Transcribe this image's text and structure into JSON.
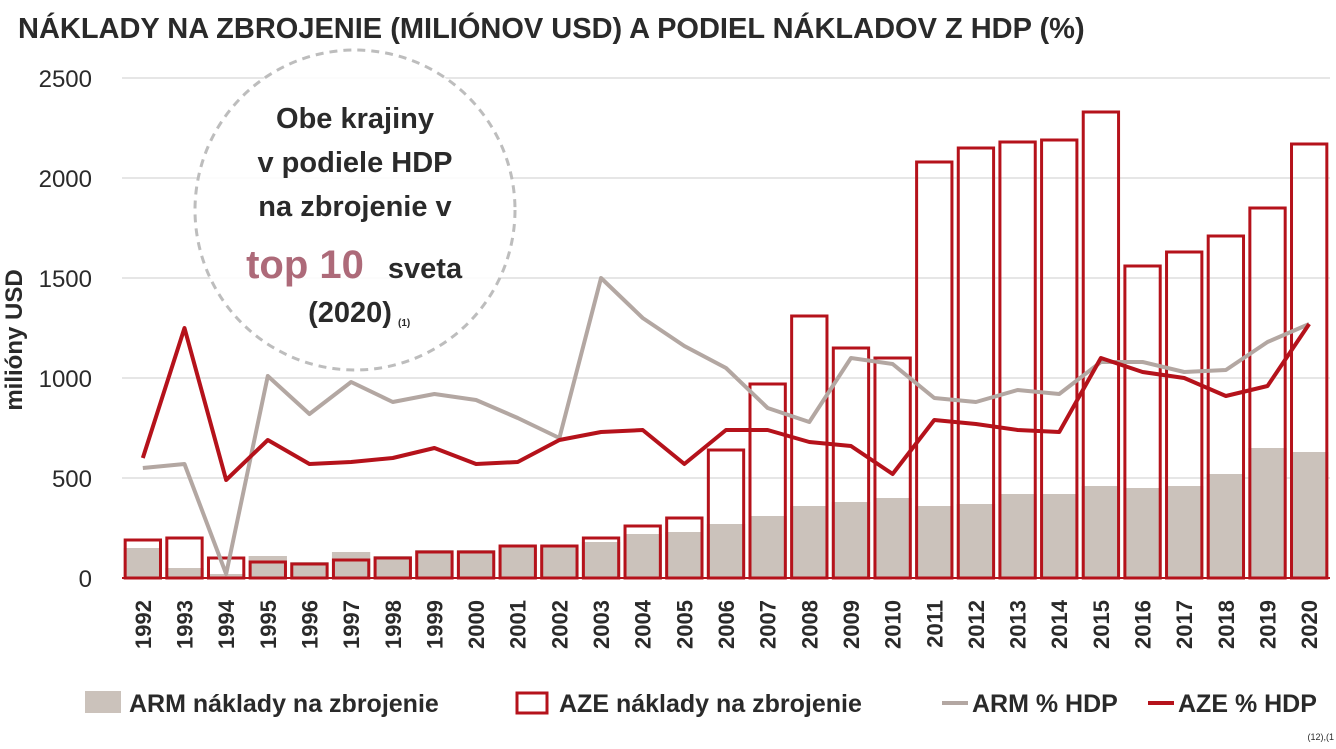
{
  "chart_data": {
    "type": "bar_line",
    "title": "NÁKLADY NA ZBROJENIE (MILIÓNOV USD) A PODIEL NÁKLADOV Z HDP (%)",
    "y_label": "milióny USD",
    "categories": [
      "1992",
      "1993",
      "1994",
      "1995",
      "1996",
      "1997",
      "1998",
      "1999",
      "2000",
      "2001",
      "2002",
      "2003",
      "2004",
      "2005",
      "2006",
      "2007",
      "2008",
      "2009",
      "2010",
      "2011",
      "2012",
      "2013",
      "2014",
      "2015",
      "2016",
      "2017",
      "2018",
      "2019",
      "2020"
    ],
    "series": [
      {
        "name": "ARM náklady na zbrojenie",
        "style": "bar",
        "color": "#cbc2bb",
        "values": [
          150,
          50,
          20,
          110,
          80,
          130,
          110,
          140,
          140,
          160,
          160,
          180,
          220,
          230,
          270,
          310,
          360,
          380,
          400,
          360,
          370,
          420,
          420,
          460,
          450,
          460,
          520,
          650,
          630
        ]
      },
      {
        "name": "AZE náklady na zbrojenie",
        "style": "outline_bar",
        "color": "#b5121b",
        "values": [
          190,
          200,
          100,
          80,
          70,
          90,
          100,
          130,
          130,
          160,
          160,
          200,
          260,
          300,
          640,
          970,
          1310,
          1150,
          1100,
          2080,
          2150,
          2180,
          2190,
          2330,
          1560,
          1630,
          1710,
          1850,
          2170
        ]
      },
      {
        "name": "ARM % HDP",
        "style": "line",
        "color": "#b3a7a2",
        "values": [
          550,
          570,
          20,
          1010,
          820,
          980,
          880,
          920,
          890,
          800,
          700,
          1500,
          1300,
          1160,
          1050,
          850,
          780,
          1100,
          1070,
          900,
          880,
          940,
          920,
          1080,
          1080,
          1030,
          1040,
          1180,
          1270
        ]
      },
      {
        "name": "AZE % HDP",
        "style": "line",
        "color": "#b5121b",
        "values": [
          600,
          1250,
          490,
          690,
          570,
          580,
          600,
          650,
          570,
          580,
          690,
          730,
          740,
          570,
          740,
          740,
          680,
          660,
          520,
          790,
          770,
          740,
          730,
          1100,
          1030,
          1000,
          910,
          960,
          1270
        ]
      }
    ],
    "ylim": [
      0,
      2500
    ],
    "yticks": [
      0,
      500,
      1000,
      1500,
      2000,
      2500
    ],
    "grid": true,
    "annotation": {
      "lines": [
        "Obe krajiny",
        "v podiele HDP",
        "na zbrojenie v"
      ],
      "highlight": "top 10",
      "highlight_rest": "sveta",
      "year": "(2020)",
      "note": "(1)"
    },
    "source": "(12),(1"
  }
}
